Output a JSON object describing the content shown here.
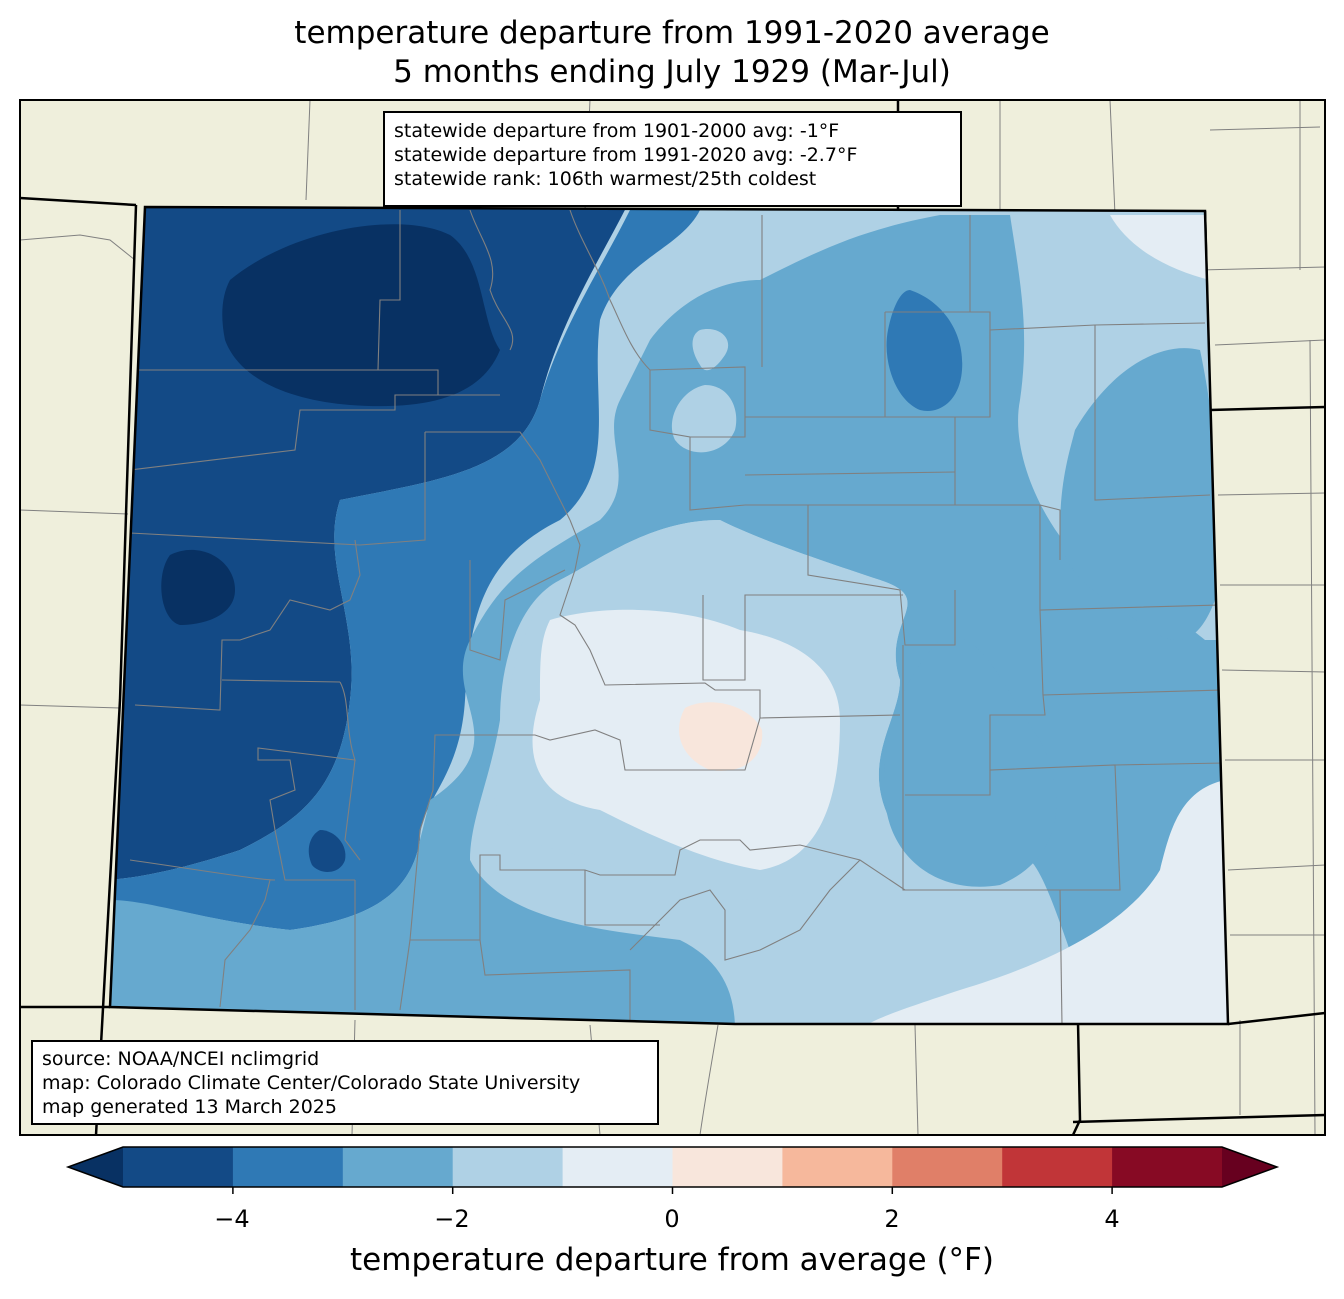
{
  "title": {
    "line1": "temperature departure from 1991-2020 average",
    "line2": "5 months ending July 1929 (Mar-Jul)"
  },
  "stats_box": {
    "line1": "statewide departure from 1901-2000 avg: -1°F",
    "line2": "statewide departure from 1991-2020 avg: -2.7°F",
    "line3": "statewide rank: 106th warmest/25th coldest"
  },
  "source_box": {
    "line1": "source: NOAA/NCEI nclimgrid",
    "line2": "map: Colorado Climate Center/Colorado State University",
    "line3": "map generated 13 March 2025"
  },
  "colorbar": {
    "label": "temperature departure from average (°F)",
    "ticks": [
      "−4",
      "−2",
      "0",
      "2",
      "4"
    ],
    "bins": [
      {
        "range": [
          -5,
          -4
        ],
        "color": "#134a86"
      },
      {
        "range": [
          -4,
          -3
        ],
        "color": "#2f79b5"
      },
      {
        "range": [
          -3,
          -2
        ],
        "color": "#66a9cf"
      },
      {
        "range": [
          -2,
          -1
        ],
        "color": "#afd1e5"
      },
      {
        "range": [
          -1,
          0
        ],
        "color": "#e4edf4"
      },
      {
        "range": [
          0,
          1
        ],
        "color": "#f8e6dc"
      },
      {
        "range": [
          1,
          2
        ],
        "color": "#f6b89c"
      },
      {
        "range": [
          2,
          3
        ],
        "color": "#e07f68"
      },
      {
        "range": [
          3,
          4
        ],
        "color": "#c13538"
      },
      {
        "range": [
          4,
          5
        ],
        "color": "#870a24"
      }
    ],
    "under_color": "#083163",
    "over_color": "#67001f"
  },
  "colors": {
    "land_background": "#efefdc",
    "county_lines": "#808080",
    "state_lines": "#000000"
  }
}
